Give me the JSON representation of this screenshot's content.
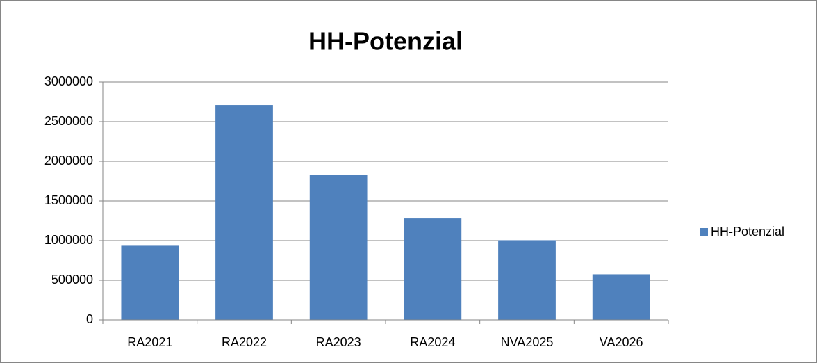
{
  "chart_data": {
    "type": "bar",
    "title": "HH-Potenzial",
    "categories": [
      "RA2021",
      "RA2022",
      "RA2023",
      "RA2024",
      "NVA2025",
      "VA2026"
    ],
    "series": [
      {
        "name": "HH-Potenzial",
        "color": "#4f81bd",
        "values": [
          935000,
          2710000,
          1830000,
          1280000,
          1005000,
          575000
        ]
      }
    ],
    "ylim": [
      0,
      3000000
    ],
    "yticks": [
      0,
      500000,
      1000000,
      1500000,
      2000000,
      2500000,
      3000000
    ],
    "grid": true,
    "legend": "right"
  }
}
